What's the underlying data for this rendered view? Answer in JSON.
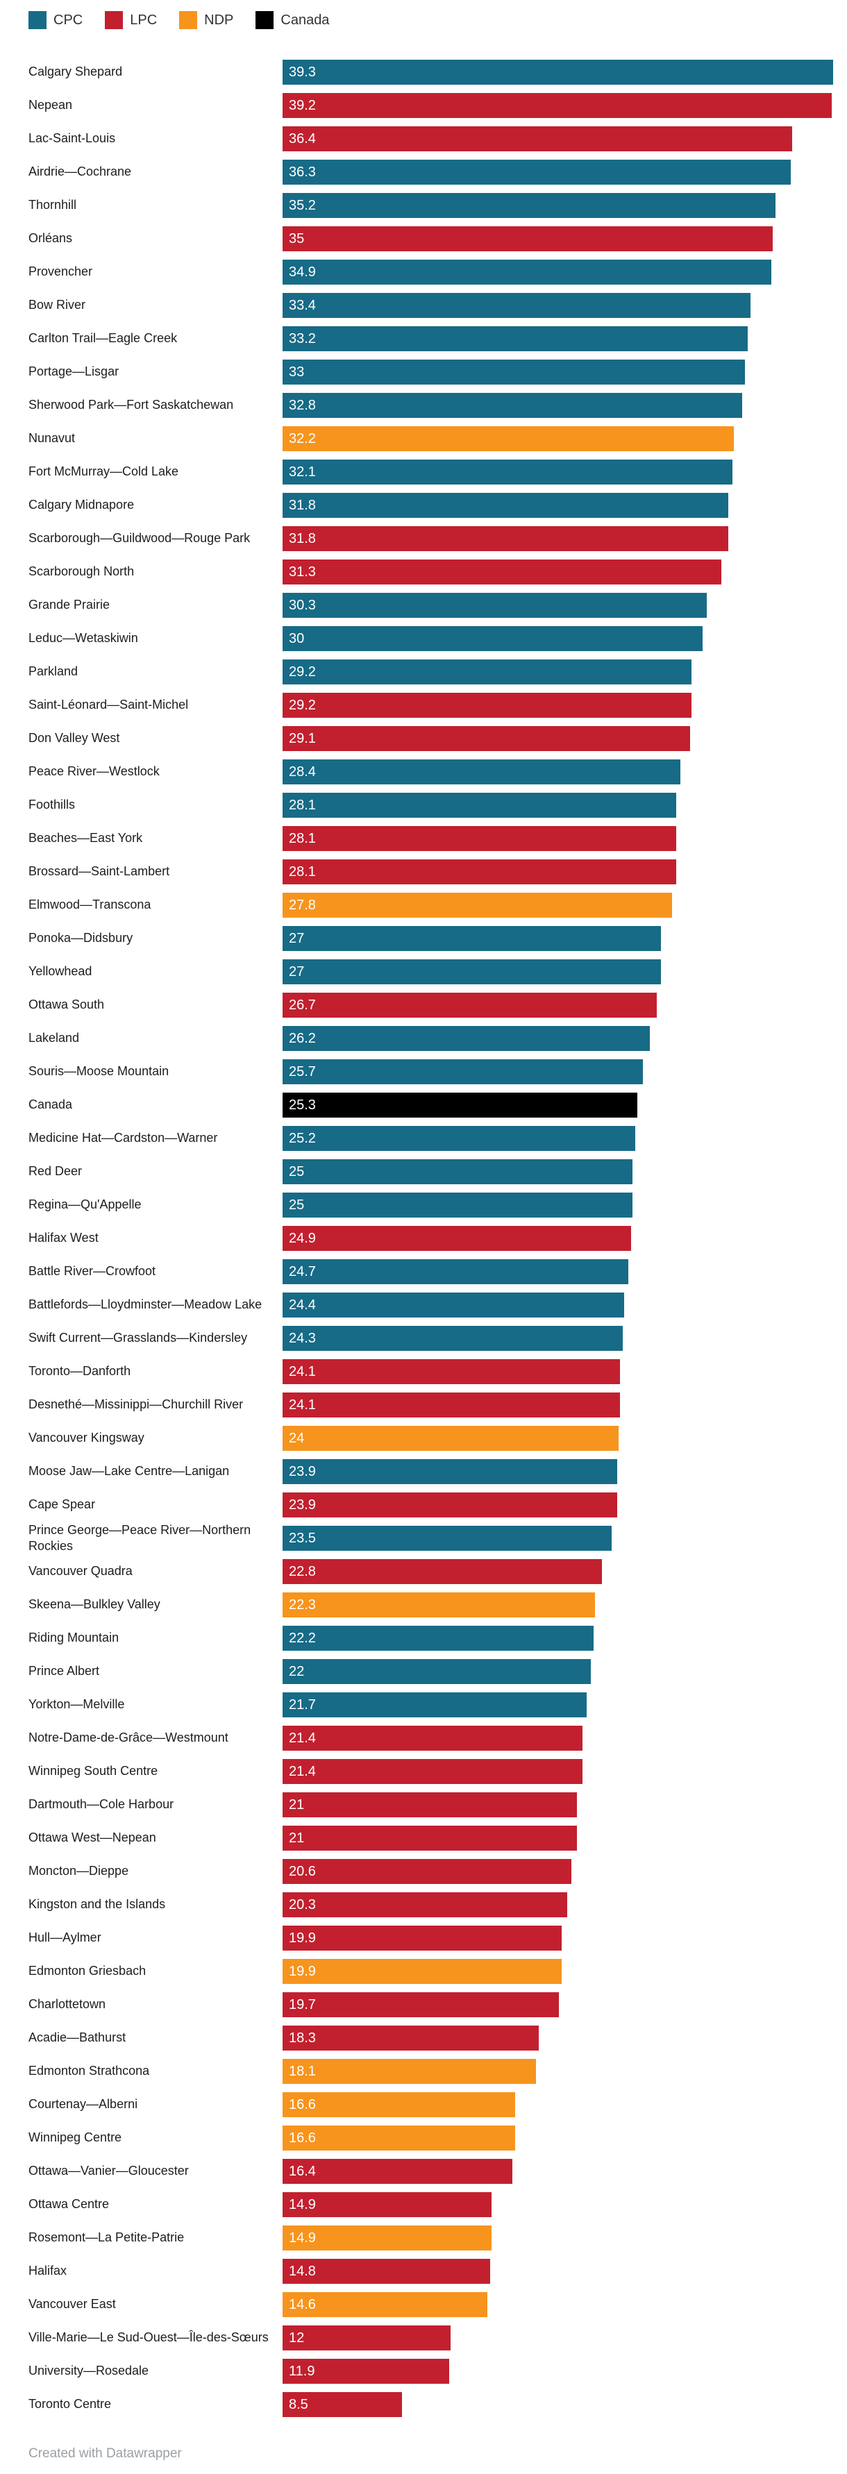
{
  "legend": {
    "items": [
      {
        "label": "CPC",
        "party": "CPC",
        "color": "#176b87"
      },
      {
        "label": "LPC",
        "party": "LPC",
        "color": "#c2202f"
      },
      {
        "label": "NDP",
        "party": "NDP",
        "color": "#f7941d"
      },
      {
        "label": "Canada",
        "party": "Canada",
        "color": "#000000"
      }
    ]
  },
  "chart_data": {
    "type": "bar",
    "orientation": "horizontal",
    "title": "",
    "xlabel": "",
    "ylabel": "",
    "xlim": [
      0,
      39.3
    ],
    "grid": false,
    "legend_position": "top-left",
    "value_labels": "inside-start",
    "value_label_color": "#ffffff",
    "colors": {
      "CPC": "#176b87",
      "LPC": "#c2202f",
      "NDP": "#f7941d",
      "Canada": "#000000"
    },
    "rows": [
      {
        "label": "Calgary Shepard",
        "value": 39.3,
        "party": "CPC"
      },
      {
        "label": "Nepean",
        "value": 39.2,
        "party": "LPC"
      },
      {
        "label": "Lac-Saint-Louis",
        "value": 36.4,
        "party": "LPC"
      },
      {
        "label": "Airdrie—Cochrane",
        "value": 36.3,
        "party": "CPC"
      },
      {
        "label": "Thornhill",
        "value": 35.2,
        "party": "CPC"
      },
      {
        "label": "Orléans",
        "value": 35,
        "party": "LPC"
      },
      {
        "label": "Provencher",
        "value": 34.9,
        "party": "CPC"
      },
      {
        "label": "Bow River",
        "value": 33.4,
        "party": "CPC"
      },
      {
        "label": "Carlton Trail—Eagle Creek",
        "value": 33.2,
        "party": "CPC"
      },
      {
        "label": "Portage—Lisgar",
        "value": 33,
        "party": "CPC"
      },
      {
        "label": "Sherwood Park—Fort Saskatchewan",
        "value": 32.8,
        "party": "CPC"
      },
      {
        "label": "Nunavut",
        "value": 32.2,
        "party": "NDP"
      },
      {
        "label": "Fort McMurray—Cold Lake",
        "value": 32.1,
        "party": "CPC"
      },
      {
        "label": "Calgary Midnapore",
        "value": 31.8,
        "party": "CPC"
      },
      {
        "label": "Scarborough—Guildwood—Rouge Park",
        "value": 31.8,
        "party": "LPC"
      },
      {
        "label": "Scarborough North",
        "value": 31.3,
        "party": "LPC"
      },
      {
        "label": "Grande Prairie",
        "value": 30.3,
        "party": "CPC"
      },
      {
        "label": "Leduc—Wetaskiwin",
        "value": 30,
        "party": "CPC"
      },
      {
        "label": "Parkland",
        "value": 29.2,
        "party": "CPC"
      },
      {
        "label": "Saint-Léonard—Saint-Michel",
        "value": 29.2,
        "party": "LPC"
      },
      {
        "label": "Don Valley West",
        "value": 29.1,
        "party": "LPC"
      },
      {
        "label": "Peace River—Westlock",
        "value": 28.4,
        "party": "CPC"
      },
      {
        "label": "Foothills",
        "value": 28.1,
        "party": "CPC"
      },
      {
        "label": "Beaches—East York",
        "value": 28.1,
        "party": "LPC"
      },
      {
        "label": "Brossard—Saint-Lambert",
        "value": 28.1,
        "party": "LPC"
      },
      {
        "label": "Elmwood—Transcona",
        "value": 27.8,
        "party": "NDP"
      },
      {
        "label": "Ponoka—Didsbury",
        "value": 27,
        "party": "CPC"
      },
      {
        "label": "Yellowhead",
        "value": 27,
        "party": "CPC"
      },
      {
        "label": "Ottawa South",
        "value": 26.7,
        "party": "LPC"
      },
      {
        "label": "Lakeland",
        "value": 26.2,
        "party": "CPC"
      },
      {
        "label": "Souris—Moose Mountain",
        "value": 25.7,
        "party": "CPC"
      },
      {
        "label": "Canada",
        "value": 25.3,
        "party": "Canada"
      },
      {
        "label": "Medicine Hat—Cardston—Warner",
        "value": 25.2,
        "party": "CPC"
      },
      {
        "label": "Red Deer",
        "value": 25,
        "party": "CPC"
      },
      {
        "label": "Regina—Qu'Appelle",
        "value": 25,
        "party": "CPC"
      },
      {
        "label": "Halifax West",
        "value": 24.9,
        "party": "LPC"
      },
      {
        "label": "Battle River—Crowfoot",
        "value": 24.7,
        "party": "CPC"
      },
      {
        "label": "Battlefords—Lloydminster—Meadow Lake",
        "value": 24.4,
        "party": "CPC"
      },
      {
        "label": "Swift Current—Grasslands—Kindersley",
        "value": 24.3,
        "party": "CPC"
      },
      {
        "label": "Toronto—Danforth",
        "value": 24.1,
        "party": "LPC"
      },
      {
        "label": "Desnethé—Missinippi—Churchill River",
        "value": 24.1,
        "party": "LPC"
      },
      {
        "label": "Vancouver Kingsway",
        "value": 24,
        "party": "NDP"
      },
      {
        "label": "Moose Jaw—Lake Centre—Lanigan",
        "value": 23.9,
        "party": "CPC"
      },
      {
        "label": "Cape Spear",
        "value": 23.9,
        "party": "LPC"
      },
      {
        "label": "Prince George—Peace River—Northern Rockies",
        "value": 23.5,
        "party": "CPC"
      },
      {
        "label": "Vancouver Quadra",
        "value": 22.8,
        "party": "LPC"
      },
      {
        "label": "Skeena—Bulkley Valley",
        "value": 22.3,
        "party": "NDP"
      },
      {
        "label": "Riding Mountain",
        "value": 22.2,
        "party": "CPC"
      },
      {
        "label": "Prince Albert",
        "value": 22,
        "party": "CPC"
      },
      {
        "label": "Yorkton—Melville",
        "value": 21.7,
        "party": "CPC"
      },
      {
        "label": "Notre-Dame-de-Grâce—Westmount",
        "value": 21.4,
        "party": "LPC"
      },
      {
        "label": "Winnipeg South Centre",
        "value": 21.4,
        "party": "LPC"
      },
      {
        "label": "Dartmouth—Cole Harbour",
        "value": 21,
        "party": "LPC"
      },
      {
        "label": "Ottawa West—Nepean",
        "value": 21,
        "party": "LPC"
      },
      {
        "label": "Moncton—Dieppe",
        "value": 20.6,
        "party": "LPC"
      },
      {
        "label": "Kingston and the Islands",
        "value": 20.3,
        "party": "LPC"
      },
      {
        "label": "Hull—Aylmer",
        "value": 19.9,
        "party": "LPC"
      },
      {
        "label": "Edmonton Griesbach",
        "value": 19.9,
        "party": "NDP"
      },
      {
        "label": "Charlottetown",
        "value": 19.7,
        "party": "LPC"
      },
      {
        "label": "Acadie—Bathurst",
        "value": 18.3,
        "party": "LPC"
      },
      {
        "label": "Edmonton Strathcona",
        "value": 18.1,
        "party": "NDP"
      },
      {
        "label": "Courtenay—Alberni",
        "value": 16.6,
        "party": "NDP"
      },
      {
        "label": "Winnipeg Centre",
        "value": 16.6,
        "party": "NDP"
      },
      {
        "label": "Ottawa—Vanier—Gloucester",
        "value": 16.4,
        "party": "LPC"
      },
      {
        "label": "Ottawa Centre",
        "value": 14.9,
        "party": "LPC"
      },
      {
        "label": "Rosemont—La Petite-Patrie",
        "value": 14.9,
        "party": "NDP"
      },
      {
        "label": "Halifax",
        "value": 14.8,
        "party": "LPC"
      },
      {
        "label": "Vancouver East",
        "value": 14.6,
        "party": "NDP"
      },
      {
        "label": "Ville-Marie—Le Sud-Ouest—Île-des-Sœurs",
        "value": 12,
        "party": "LPC"
      },
      {
        "label": "University—Rosedale",
        "value": 11.9,
        "party": "LPC"
      },
      {
        "label": "Toronto Centre",
        "value": 8.5,
        "party": "LPC"
      }
    ]
  },
  "footer": {
    "credit": "Created with Datawrapper"
  }
}
